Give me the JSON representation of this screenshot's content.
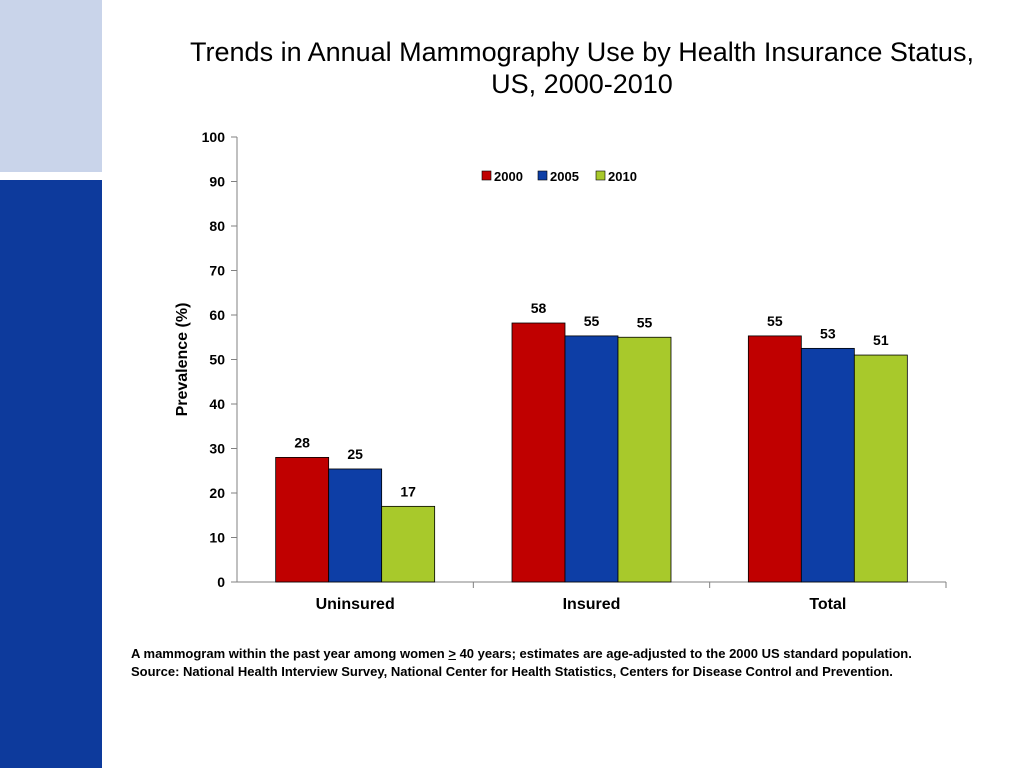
{
  "colors": {
    "side_band_light": "#c9d4ea",
    "side_band_dark": "#0d3a9c",
    "series_2000": "#c00000",
    "series_2005": "#0d3ea6",
    "series_2010": "#a8c92b"
  },
  "title": {
    "line1": "Trends in Annual Mammography Use by Health Insurance Status,",
    "line2": "US, 2000-2010"
  },
  "chart_data": {
    "type": "bar",
    "categories": [
      "Uninsured",
      "Insured",
      "Total"
    ],
    "series": [
      {
        "name": "2000",
        "values": [
          28,
          58,
          55
        ],
        "color": "#c00000"
      },
      {
        "name": "2005",
        "values": [
          25,
          55,
          53
        ],
        "color": "#0d3ea6"
      },
      {
        "name": "2010",
        "values": [
          17,
          55,
          51
        ],
        "color": "#a8c92b"
      }
    ],
    "plotted_values": [
      [
        28.0,
        58.2,
        55.3
      ],
      [
        25.4,
        55.3,
        52.5
      ],
      [
        17.0,
        55.0,
        51.0
      ]
    ],
    "data_labels": [
      [
        "28",
        "58",
        "55"
      ],
      [
        "25",
        "55",
        "53"
      ],
      [
        "17",
        "55",
        "51"
      ]
    ],
    "ylabel": "Prevalence (%)",
    "xlabel": "",
    "ylim": [
      0,
      100
    ],
    "yticks": [
      0,
      10,
      20,
      30,
      40,
      50,
      60,
      70,
      80,
      90,
      100
    ],
    "grid": false,
    "legend_position": "top-center"
  },
  "footnote": {
    "line1_before": "A mammogram within the past year among women ",
    "line1_geq": ">",
    "line1_after": " 40 years; estimates are age-adjusted to the 2000 US standard population.",
    "line2": "Source: National Health Interview Survey, National Center for Health Statistics, Centers for Disease Control and Prevention."
  }
}
